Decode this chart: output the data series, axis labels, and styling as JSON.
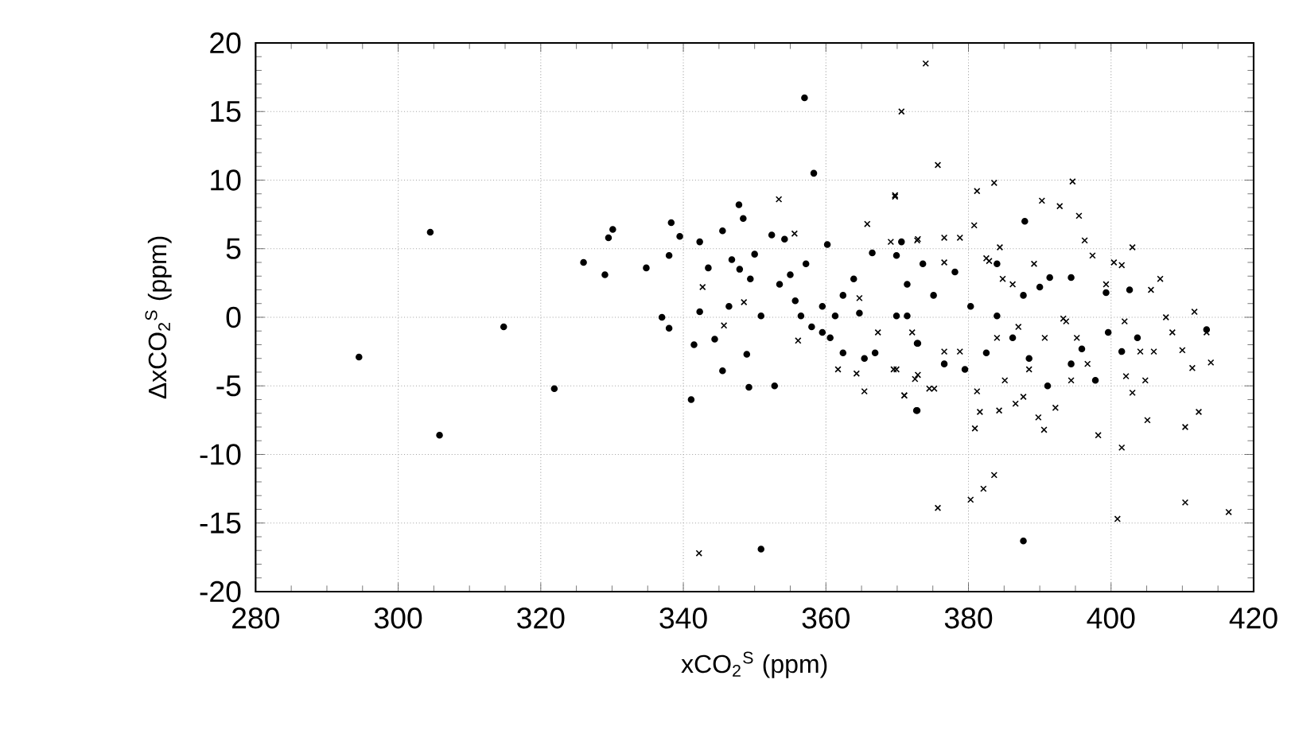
{
  "chart_data": {
    "type": "scatter",
    "xlabel": "xCO$_{2}$$^{S}$ (ppm)",
    "ylabel": "ΔxCO$_{2}$$^{S}$ (ppm)",
    "xlim": [
      280,
      420
    ],
    "ylim": [
      -20,
      20
    ],
    "xticks": [
      280,
      300,
      320,
      340,
      360,
      380,
      400,
      420
    ],
    "yticks": [
      -20,
      -15,
      -10,
      -5,
      0,
      5,
      10,
      15,
      20
    ],
    "grid": true,
    "series": [
      {
        "color": "#000000",
        "marker": "circle",
        "x": [
          294.5,
          305.8,
          314.8,
          321.9,
          304.5,
          357,
          358.3,
          326.0,
          329.0,
          330.1,
          329.5,
          334.8,
          338.3,
          339.5,
          338.0,
          337.0,
          338.0,
          341.5,
          341.1,
          345.5,
          344.4,
          342.3,
          342.3,
          343.5,
          345.5,
          347.8,
          348.4,
          346.8,
          347.9,
          349.4,
          346.4,
          348.9,
          349.2,
          352.8,
          350.9,
          350.0,
          352.4,
          354.2,
          350.9,
          355.7,
          356.5,
          358.0,
          355.0,
          359.5,
          360.6,
          362.4,
          365.4,
          366.9,
          360.2,
          362.4,
          363.9,
          366.5,
          370.6,
          371.4,
          369.9,
          372.9,
          372.7,
          357.2,
          353.5,
          359.5,
          361.3,
          364.7,
          387.9,
          387.7,
          372.8,
          369.9,
          378.1,
          373.6,
          375.1,
          380.3,
          384.0,
          387.7,
          390.0,
          371.4,
          372.8,
          376.6,
          379.5,
          382.5,
          386.2,
          388.5,
          391.1,
          394.4,
          395.9,
          397.8,
          399.6,
          401.5,
          402.6,
          399.3,
          394.4,
          403.7,
          413.4,
          391.4,
          384.0
        ],
        "values": [
          -2.9,
          -8.6,
          -0.7,
          -5.2,
          6.2,
          16,
          10.5,
          4.0,
          3.1,
          6.4,
          5.8,
          3.6,
          6.9,
          5.9,
          4.5,
          0.0,
          -0.8,
          -2.0,
          -6.0,
          -3.9,
          -1.6,
          0.4,
          5.5,
          3.6,
          6.3,
          8.2,
          7.2,
          4.2,
          3.5,
          2.8,
          0.8,
          -2.7,
          -5.1,
          -5.0,
          -16.9,
          4.6,
          6.0,
          5.7,
          0.1,
          1.2,
          0.1,
          -0.7,
          3.1,
          -1.1,
          -1.5,
          -2.6,
          -3.0,
          -2.6,
          5.3,
          1.6,
          2.8,
          4.7,
          5.5,
          2.4,
          0.1,
          -1.9,
          -6.8,
          3.9,
          2.4,
          0.8,
          0.1,
          0.3,
          7.0,
          -16.3,
          -6.8,
          4.5,
          3.3,
          3.9,
          1.6,
          0.8,
          0.1,
          1.6,
          2.2,
          0.1,
          -1.9,
          -3.4,
          -3.8,
          -2.6,
          -1.5,
          -3.0,
          -5.0,
          -3.4,
          -2.3,
          -4.6,
          -1.1,
          -2.5,
          2.0,
          1.8,
          2.9,
          -1.5,
          -0.9,
          2.9,
          3.9
        ]
      },
      {
        "color": "#000000",
        "marker": "cross",
        "x": [
          342.7,
          365.8,
          369.7,
          369.1,
          372.9,
          364.7,
          367.3,
          369.5,
          365.4,
          361.7,
          364.3,
          371.0,
          372.9,
          342.2,
          353.4,
          355.6,
          356.1,
          345.7,
          348.5,
          374.0,
          370.6,
          375.7,
          381.2,
          383.6,
          394.6,
          395.5,
          380.8,
          376.6,
          378.8,
          372.8,
          369.7,
          384.4,
          382.5,
          389.2,
          396.3,
          397.4,
          400.4,
          406.9,
          411.7,
          413.4,
          414.0,
          411.4,
          410.0,
          408.6,
          407.7,
          406.0,
          404.8,
          402.1,
          412.3,
          410.4,
          410.4,
          416.5,
          400.9,
          401.5,
          398.2,
          392.2,
          389.8,
          390.6,
          387.7,
          386.6,
          384.3,
          381.6,
          380.9,
          382.1,
          380.3,
          375.7,
          381.2,
          375.2,
          374.5,
          371.0,
          372.5,
          369.9,
          372.1,
          376.6,
          378.8,
          384.0,
          387.0,
          390.7,
          393.7,
          395.2,
          396.7,
          394.4,
          385.1,
          388.5,
          386.2,
          384.8,
          382.9,
          376.6,
          393.3,
          399.3,
          401.9,
          404.1,
          390.3,
          392.8,
          403.0,
          405.6,
          403.0,
          405.1,
          383.6,
          401.5
        ],
        "values": [
          2.2,
          6.8,
          8.9,
          5.5,
          5.7,
          1.4,
          -1.1,
          -3.8,
          -5.4,
          -3.8,
          -4.1,
          -5.7,
          -4.2,
          -17.2,
          8.6,
          6.1,
          -1.7,
          -0.6,
          1.1,
          18.5,
          15.0,
          11.1,
          9.2,
          9.8,
          9.9,
          7.4,
          6.7,
          5.8,
          5.8,
          5.6,
          8.8,
          5.1,
          4.3,
          3.9,
          5.6,
          4.5,
          4.0,
          2.8,
          0.4,
          -1.1,
          -3.3,
          -3.7,
          -2.4,
          -1.1,
          0.0,
          -2.5,
          -4.6,
          -4.3,
          -6.9,
          -8.0,
          -13.5,
          -14.2,
          -14.7,
          -9.5,
          -8.6,
          -6.6,
          -7.3,
          -8.2,
          -5.8,
          -6.3,
          -6.8,
          -6.9,
          -8.1,
          -12.5,
          -13.3,
          -13.9,
          -5.4,
          -5.2,
          -5.2,
          -5.7,
          -4.5,
          -3.8,
          -1.1,
          -2.5,
          -2.5,
          -1.5,
          -0.7,
          -1.5,
          -0.3,
          -1.5,
          -3.4,
          -4.6,
          -4.6,
          -3.8,
          2.4,
          2.8,
          4.1,
          4.0,
          -0.1,
          2.4,
          -0.3,
          -2.5,
          8.5,
          8.1,
          5.1,
          2.0,
          -5.5,
          -7.5,
          -11.5,
          3.8
        ]
      }
    ]
  }
}
